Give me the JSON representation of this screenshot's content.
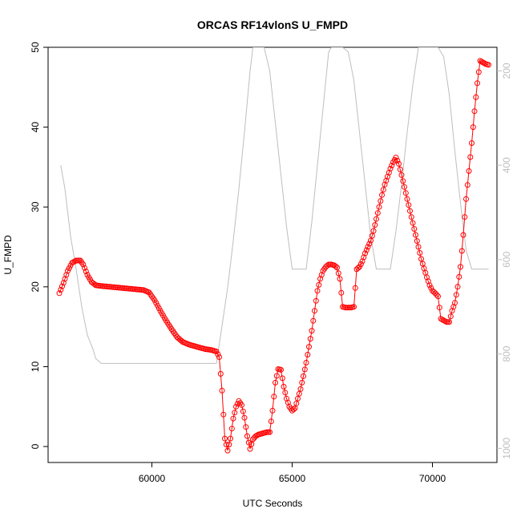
{
  "chart_data": {
    "type": "line",
    "title": "ORCAS RF14vlonS U_FMPD",
    "xlabel": "UTC Seconds",
    "ylabel": "U_FMPD",
    "xlim": [
      56300,
      72300
    ],
    "ylim": [
      -2,
      50
    ],
    "x_ticks": [
      60000,
      65000,
      70000
    ],
    "y_ticks": [
      0,
      10,
      20,
      30,
      40,
      50
    ],
    "y2_ticks": [
      200,
      400,
      600,
      800,
      1000
    ],
    "y2lim": [
      1030,
      150
    ],
    "grid": false,
    "colors": {
      "series": "#ff0000",
      "secondary": "#bebebe"
    },
    "series": [
      {
        "style": "points-with-line",
        "points": [
          [
            56700,
            19.2
          ],
          [
            56850,
            20.5
          ],
          [
            57000,
            22.0
          ],
          [
            57150,
            23.0
          ],
          [
            57300,
            23.3
          ],
          [
            57450,
            23.3
          ],
          [
            57550,
            22.8
          ],
          [
            57700,
            21.5
          ],
          [
            57850,
            20.6
          ],
          [
            58000,
            20.2
          ],
          [
            58200,
            20.1
          ],
          [
            58500,
            20.0
          ],
          [
            58800,
            19.9
          ],
          [
            59100,
            19.8
          ],
          [
            59400,
            19.7
          ],
          [
            59700,
            19.6
          ],
          [
            59900,
            19.3
          ],
          [
            60100,
            18.3
          ],
          [
            60300,
            17.0
          ],
          [
            60500,
            15.8
          ],
          [
            60700,
            14.7
          ],
          [
            60900,
            13.7
          ],
          [
            61100,
            13.1
          ],
          [
            61300,
            12.8
          ],
          [
            61500,
            12.6
          ],
          [
            61700,
            12.4
          ],
          [
            61900,
            12.2
          ],
          [
            62100,
            12.1
          ],
          [
            62300,
            11.9
          ],
          [
            62400,
            11.2
          ],
          [
            62500,
            7.0
          ],
          [
            62600,
            1.0
          ],
          [
            62700,
            -0.5
          ],
          [
            62800,
            1.0
          ],
          [
            62900,
            3.5
          ],
          [
            63000,
            5.0
          ],
          [
            63100,
            5.7
          ],
          [
            63200,
            5.2
          ],
          [
            63300,
            3.6
          ],
          [
            63400,
            1.3
          ],
          [
            63500,
            -0.3
          ],
          [
            63600,
            0.9
          ],
          [
            63700,
            1.3
          ],
          [
            63800,
            1.5
          ],
          [
            63900,
            1.6
          ],
          [
            64000,
            1.7
          ],
          [
            64100,
            1.8
          ],
          [
            64200,
            1.8
          ],
          [
            64300,
            4.5
          ],
          [
            64400,
            8.0
          ],
          [
            64500,
            9.7
          ],
          [
            64600,
            9.6
          ],
          [
            64700,
            7.5
          ],
          [
            64800,
            6.0
          ],
          [
            64900,
            5.0
          ],
          [
            65000,
            4.5
          ],
          [
            65100,
            4.8
          ],
          [
            65200,
            6.0
          ],
          [
            65300,
            7.2
          ],
          [
            65400,
            8.8
          ],
          [
            65500,
            10.5
          ],
          [
            65600,
            12.5
          ],
          [
            65700,
            14.5
          ],
          [
            65800,
            17.0
          ],
          [
            65900,
            19.5
          ],
          [
            66000,
            21.0
          ],
          [
            66100,
            22.0
          ],
          [
            66200,
            22.5
          ],
          [
            66300,
            22.8
          ],
          [
            66400,
            22.8
          ],
          [
            66500,
            22.7
          ],
          [
            66600,
            22.4
          ],
          [
            66700,
            21.0
          ],
          [
            66800,
            17.5
          ],
          [
            66900,
            17.4
          ],
          [
            67000,
            17.4
          ],
          [
            67100,
            17.4
          ],
          [
            67200,
            17.5
          ],
          [
            67300,
            22.2
          ],
          [
            67400,
            22.5
          ],
          [
            67500,
            23.2
          ],
          [
            67600,
            24.2
          ],
          [
            67700,
            25.0
          ],
          [
            67800,
            25.8
          ],
          [
            67900,
            27.0
          ],
          [
            68000,
            28.5
          ],
          [
            68100,
            30.0
          ],
          [
            68200,
            31.5
          ],
          [
            68300,
            32.8
          ],
          [
            68400,
            33.8
          ],
          [
            68500,
            34.8
          ],
          [
            68600,
            35.6
          ],
          [
            68700,
            36.2
          ],
          [
            68800,
            35.4
          ],
          [
            68900,
            34.0
          ],
          [
            69000,
            32.5
          ],
          [
            69100,
            31.0
          ],
          [
            69200,
            29.5
          ],
          [
            69300,
            28.0
          ],
          [
            69400,
            26.5
          ],
          [
            69500,
            25.0
          ],
          [
            69600,
            23.5
          ],
          [
            69700,
            22.3
          ],
          [
            69800,
            21.2
          ],
          [
            69900,
            20.2
          ],
          [
            70000,
            19.5
          ],
          [
            70100,
            19.2
          ],
          [
            70200,
            18.8
          ],
          [
            70300,
            16.0
          ],
          [
            70400,
            15.8
          ],
          [
            70500,
            15.6
          ],
          [
            70600,
            15.6
          ],
          [
            70700,
            17.0
          ],
          [
            70800,
            18.0
          ],
          [
            70900,
            20.0
          ],
          [
            71000,
            22.5
          ],
          [
            71100,
            26.5
          ],
          [
            71200,
            31.0
          ],
          [
            71300,
            34.5
          ],
          [
            71400,
            38.0
          ],
          [
            71500,
            42.0
          ],
          [
            71600,
            45.5
          ],
          [
            71700,
            48.3
          ],
          [
            71800,
            48.1
          ],
          [
            71900,
            47.9
          ],
          [
            72000,
            47.8
          ]
        ]
      },
      {
        "style": "line",
        "axis": "right",
        "points": [
          [
            56750,
            400
          ],
          [
            56900,
            450
          ],
          [
            57100,
            550
          ],
          [
            57300,
            620
          ],
          [
            57500,
            700
          ],
          [
            57700,
            760
          ],
          [
            57900,
            790
          ],
          [
            58000,
            810
          ],
          [
            58200,
            820
          ],
          [
            59000,
            820
          ],
          [
            60000,
            820
          ],
          [
            61000,
            820
          ],
          [
            62000,
            820
          ],
          [
            62300,
            820
          ],
          [
            62500,
            740
          ],
          [
            62700,
            660
          ],
          [
            62900,
            560
          ],
          [
            63100,
            450
          ],
          [
            63300,
            330
          ],
          [
            63500,
            200
          ],
          [
            63600,
            150
          ],
          [
            64000,
            150
          ],
          [
            64200,
            200
          ],
          [
            64400,
            310
          ],
          [
            64600,
            420
          ],
          [
            64800,
            530
          ],
          [
            65000,
            620
          ],
          [
            65200,
            620
          ],
          [
            65500,
            620
          ],
          [
            65700,
            520
          ],
          [
            65900,
            400
          ],
          [
            66100,
            280
          ],
          [
            66300,
            160
          ],
          [
            66400,
            150
          ],
          [
            66600,
            150
          ],
          [
            66800,
            150
          ],
          [
            67000,
            160
          ],
          [
            67200,
            220
          ],
          [
            67400,
            330
          ],
          [
            67600,
            440
          ],
          [
            67800,
            550
          ],
          [
            68000,
            620
          ],
          [
            68200,
            620
          ],
          [
            68500,
            620
          ],
          [
            68700,
            540
          ],
          [
            68900,
            440
          ],
          [
            69100,
            330
          ],
          [
            69300,
            230
          ],
          [
            69500,
            150
          ],
          [
            70100,
            150
          ],
          [
            70200,
            150
          ],
          [
            70400,
            170
          ],
          [
            70600,
            250
          ],
          [
            70800,
            370
          ],
          [
            71000,
            480
          ],
          [
            71200,
            580
          ],
          [
            71400,
            620
          ],
          [
            71700,
            620
          ],
          [
            72000,
            620
          ]
        ]
      }
    ]
  }
}
